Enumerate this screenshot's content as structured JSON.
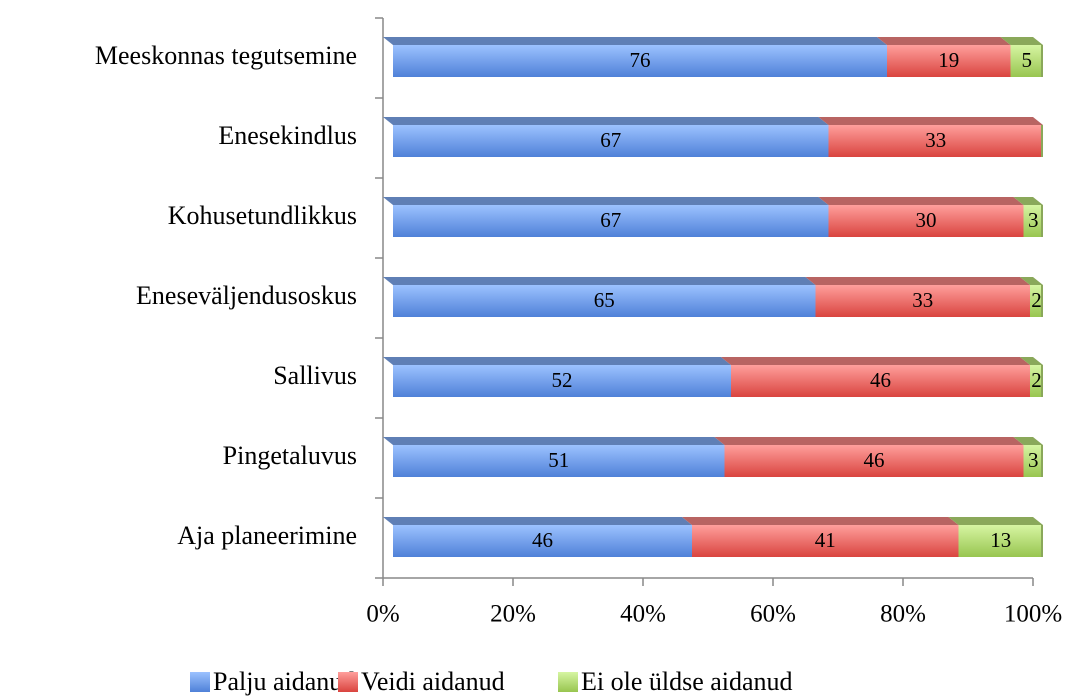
{
  "chart_data": {
    "type": "stacked-bar-horizontal",
    "categories": [
      "Meeskonnas tegutsemine",
      "Enesekindlus",
      "Kohusetundlikkus",
      "Eneseväljendusoskus",
      "Sallivus",
      "Pingetaluvus",
      "Aja planeerimine"
    ],
    "series": [
      {
        "name": "Palju aidanud",
        "color": "#6b9ce8",
        "values": [
          76,
          67,
          67,
          65,
          52,
          51,
          46
        ]
      },
      {
        "name": "Veidi aidanud",
        "color": "#ec6a66",
        "values": [
          19,
          33,
          30,
          33,
          46,
          46,
          41
        ]
      },
      {
        "name": "Ei ole üldse aidanud",
        "color": "#b8e07a",
        "values": [
          5,
          0,
          3,
          2,
          2,
          3,
          13
        ]
      }
    ],
    "xlim": [
      0,
      100
    ],
    "xticks": [
      {
        "value": 0,
        "label": "0%"
      },
      {
        "value": 20,
        "label": "20%"
      },
      {
        "value": 40,
        "label": "40%"
      },
      {
        "value": 60,
        "label": "60%"
      },
      {
        "value": 80,
        "label": "80%"
      },
      {
        "value": 100,
        "label": "100%"
      }
    ],
    "legend": "bottom"
  }
}
